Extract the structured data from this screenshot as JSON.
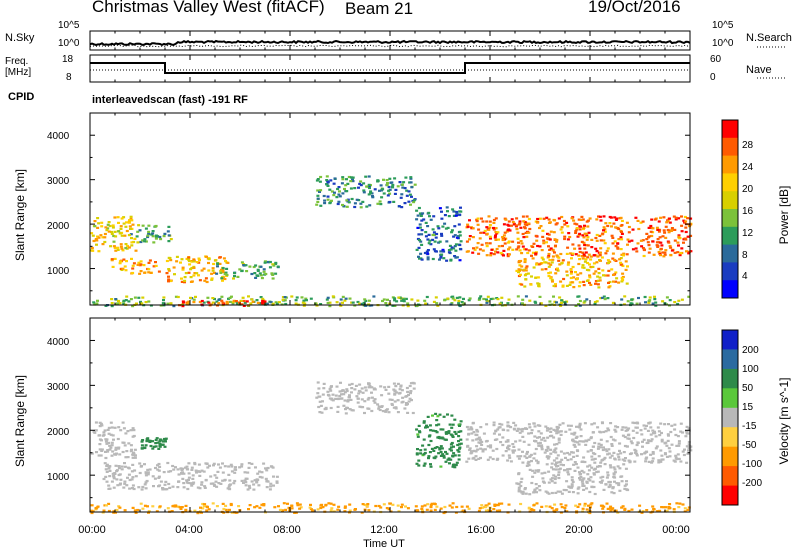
{
  "header": {
    "station": "Christmas Valley West (fitACF)",
    "beam": "Beam 21",
    "date": "19/Oct/2016"
  },
  "noise_panel": {
    "left_label": "N.Sky",
    "right_label": "N.Search",
    "left_ticks": [
      "10^5",
      "10^0"
    ],
    "right_ticks": [
      "10^5",
      "10^0"
    ]
  },
  "freq_panel": {
    "left_label_1": "Freq.",
    "left_label_2": "[MHz]",
    "right_label": "Nave",
    "left_ticks": [
      "18",
      "8"
    ],
    "right_ticks": [
      "60",
      "0"
    ],
    "cpid_label": "CPID",
    "cpid_text": "interleavedscan (fast) -191 RF"
  },
  "chart_data": [
    {
      "type": "heatmap",
      "parameter": "Power",
      "ylabel": "Slant Range [km]",
      "xlabel": "",
      "ylim": [
        180,
        4500
      ],
      "yticks": [
        "4000",
        "3000",
        "2000",
        "1000"
      ],
      "colorbar": {
        "label": "Power [dB]",
        "ticks": [
          "28",
          "24",
          "20",
          "16",
          "12",
          "8",
          "4"
        ],
        "colors": [
          "#ff0000",
          "#ff5a00",
          "#ff9a00",
          "#ffd000",
          "#d8d000",
          "#7cc23a",
          "#2c9c5a",
          "#2a6a9a",
          "#1a3cc0",
          "#0000ff"
        ]
      },
      "features": [
        {
          "t0": 0.0,
          "t1": 1.8,
          "r0": 1400,
          "r1": 2200,
          "level": 20
        },
        {
          "t0": 0.8,
          "t1": 2.8,
          "r0": 900,
          "r1": 1250,
          "level": 24
        },
        {
          "t0": 1.5,
          "t1": 3.2,
          "r0": 1600,
          "r1": 2000,
          "level": 12
        },
        {
          "t0": 3.0,
          "t1": 5.5,
          "r0": 700,
          "r1": 1300,
          "level": 22
        },
        {
          "t0": 5.0,
          "t1": 7.5,
          "r0": 800,
          "r1": 1200,
          "level": 12
        },
        {
          "t0": 9.0,
          "t1": 13.0,
          "r0": 2400,
          "r1": 3100,
          "level": 10
        },
        {
          "t0": 13.0,
          "t1": 14.8,
          "r0": 1200,
          "r1": 2400,
          "level": 8
        },
        {
          "t0": 15.0,
          "t1": 24.0,
          "r0": 1300,
          "r1": 2200,
          "level": 26
        },
        {
          "t0": 17.0,
          "t1": 21.5,
          "r0": 600,
          "r1": 1300,
          "level": 22
        },
        {
          "t0": 0.0,
          "t1": 24.0,
          "r0": 180,
          "r1": 400,
          "level": 14
        },
        {
          "t0": 3.5,
          "t1": 7.0,
          "r0": 180,
          "r1": 300,
          "level": 28
        }
      ]
    },
    {
      "type": "heatmap",
      "parameter": "Velocity",
      "ylabel": "Slant Range [km]",
      "xlabel": "Time UT",
      "ylim": [
        180,
        4500
      ],
      "yticks": [
        "4000",
        "3000",
        "2000",
        "1000"
      ],
      "xticks": [
        "00:00",
        "04:00",
        "08:00",
        "12:00",
        "16:00",
        "20:00",
        "00:00"
      ],
      "xlim": [
        0,
        24
      ],
      "colorbar": {
        "label": "Velocity [m s^-1]",
        "ticks": [
          "200",
          "100",
          "50",
          "15",
          "-15",
          "-50",
          "-100",
          "-200"
        ],
        "colors": [
          "#1020c8",
          "#2a6aa0",
          "#2e8a4a",
          "#5ac83a",
          "#b8b8b8",
          "#ffd040",
          "#ff9a00",
          "#ff5a00",
          "#ff0000"
        ]
      },
      "features": [
        {
          "t0": 0.0,
          "t1": 1.8,
          "r0": 1400,
          "r1": 2200,
          "level": 0
        },
        {
          "t0": 2.0,
          "t1": 3.0,
          "r0": 1600,
          "r1": 1850,
          "level": 60
        },
        {
          "t0": 0.5,
          "t1": 7.5,
          "r0": 700,
          "r1": 1300,
          "level": 0
        },
        {
          "t0": 9.0,
          "t1": 13.0,
          "r0": 2400,
          "r1": 3100,
          "level": 0
        },
        {
          "t0": 13.0,
          "t1": 14.8,
          "r0": 1200,
          "r1": 2400,
          "level": 40
        },
        {
          "t0": 15.0,
          "t1": 24.0,
          "r0": 1300,
          "r1": 2200,
          "level": 0
        },
        {
          "t0": 17.0,
          "t1": 21.5,
          "r0": 600,
          "r1": 1300,
          "level": 0
        },
        {
          "t0": 0.0,
          "t1": 24.0,
          "r0": 180,
          "r1": 400,
          "level": -40
        }
      ]
    }
  ]
}
